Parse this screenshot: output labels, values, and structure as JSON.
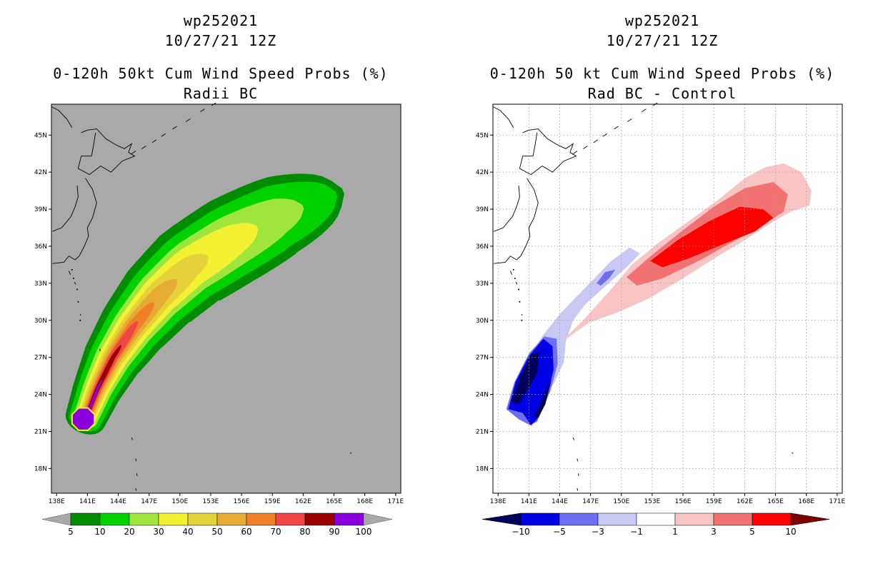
{
  "chart_data": [
    {
      "type": "heatmap",
      "storm_id": "wp252021",
      "date": "10/27/21 12Z",
      "title": "0-120h 50kt Cum Wind Speed Probs (%)",
      "subtitle": "Radii BC",
      "x_ticks": [
        "138E",
        "141E",
        "144E",
        "147E",
        "150E",
        "153E",
        "156E",
        "159E",
        "162E",
        "165E",
        "168E",
        "171E"
      ],
      "y_ticks": [
        "45N",
        "42N",
        "39N",
        "36N",
        "33N",
        "30N",
        "27N",
        "24N",
        "21N",
        "18N"
      ],
      "xlim": [
        137.5,
        171.5
      ],
      "ylim": [
        16.0,
        47.5
      ],
      "background_color": "#a9a9a9",
      "contour_levels": [
        5,
        10,
        20,
        30,
        40,
        50,
        60,
        70,
        80,
        90,
        100
      ],
      "colorbar_labels": [
        "5",
        "10",
        "20",
        "30",
        "40",
        "50",
        "60",
        "70",
        "80",
        "90",
        "100"
      ],
      "colors": [
        "#008c00",
        "#00d200",
        "#9ee53e",
        "#f2f233",
        "#e6d13a",
        "#e6ab33",
        "#f08028",
        "#f04646",
        "#9b0000",
        "#8a00dc"
      ],
      "track": {
        "path": [
          [
            140.8,
            22.0
          ],
          [
            142.0,
            24.5
          ],
          [
            143.5,
            27.0
          ],
          [
            145.5,
            29.5
          ],
          [
            148.0,
            32.0
          ],
          [
            151.0,
            34.3
          ],
          [
            155.0,
            36.4
          ],
          [
            159.5,
            38.4
          ],
          [
            164.5,
            40.0
          ]
        ],
        "widths_deg": [
          2.0,
          2.4,
          2.9,
          3.4,
          3.9,
          4.3,
          4.6,
          4.7,
          4.6
        ],
        "tip_extension": 1.5,
        "level_ends": [
          1.0,
          0.98,
          0.88,
          0.74,
          0.58,
          0.47,
          0.38,
          0.31,
          0.23,
          0.12
        ],
        "level_width_fractions": [
          1.0,
          0.8,
          0.6,
          0.48,
          0.37,
          0.28,
          0.2,
          0.15,
          0.09,
          0.05
        ]
      },
      "max_core": {
        "lon": 140.6,
        "lat": 22.0,
        "value_min": 100
      }
    },
    {
      "type": "heatmap",
      "storm_id": "wp252021",
      "date": "10/27/21 12Z",
      "title": "0-120h 50 kt Cum Wind Speed Probs (%)",
      "subtitle": "Rad BC - Control",
      "x_ticks": [
        "138E",
        "141E",
        "144E",
        "147E",
        "150E",
        "153E",
        "156E",
        "159E",
        "162E",
        "165E",
        "168E",
        "171E"
      ],
      "y_ticks": [
        "45N",
        "42N",
        "39N",
        "36N",
        "33N",
        "30N",
        "27N",
        "24N",
        "21N",
        "18N"
      ],
      "xlim": [
        137.5,
        171.5
      ],
      "ylim": [
        16.0,
        47.5
      ],
      "background_color": "#ffffff",
      "contour_levels": [
        -10,
        -5,
        -3,
        -1,
        1,
        3,
        5,
        10
      ],
      "colorbar_labels": [
        "-10",
        "-5",
        "-3",
        "-1",
        "1",
        "3",
        "5",
        "10"
      ],
      "colors": [
        "#00005a",
        "#0000e6",
        "#6e6ef0",
        "#c8c8f5",
        "#ffffff",
        "#f8c4c4",
        "#f27272",
        "#ff0000",
        "#7a0000"
      ],
      "negative_regions": [
        {
          "level": "-1 to -3",
          "polygon": [
            [
              138.8,
              22.8
            ],
            [
              139.5,
              24.5
            ],
            [
              141.0,
              27.0
            ],
            [
              142.3,
              28.7
            ],
            [
              144.0,
              30.5
            ],
            [
              145.5,
              31.8
            ],
            [
              147.5,
              33.5
            ],
            [
              149.0,
              34.8
            ],
            [
              150.8,
              35.9
            ],
            [
              151.8,
              35.4
            ],
            [
              150.5,
              34.3
            ],
            [
              148.5,
              32.8
            ],
            [
              146.5,
              31.3
            ],
            [
              145.3,
              30.0
            ],
            [
              144.6,
              28.3
            ],
            [
              144.4,
              26.6
            ],
            [
              143.5,
              25.0
            ],
            [
              142.3,
              23.5
            ],
            [
              141.3,
              21.4
            ],
            [
              140.3,
              22.0
            ]
          ]
        },
        {
          "level": "-3 to -5",
          "polygon": [
            [
              147.6,
              33.0
            ],
            [
              148.4,
              33.9
            ],
            [
              149.4,
              34.1
            ],
            [
              148.8,
              33.4
            ],
            [
              148.0,
              32.8
            ]
          ]
        },
        {
          "level": "-3 to -5",
          "polygon": [
            [
              138.8,
              22.8
            ],
            [
              139.6,
              25.0
            ],
            [
              141.0,
              27.3
            ],
            [
              142.5,
              28.7
            ],
            [
              143.7,
              28.5
            ],
            [
              143.8,
              26.5
            ],
            [
              143.1,
              24.3
            ],
            [
              141.8,
              21.8
            ],
            [
              141.1,
              21.5
            ],
            [
              140.0,
              22.0
            ]
          ]
        },
        {
          "level": "-5 to -10",
          "polygon": [
            [
              139.0,
              22.8
            ],
            [
              139.7,
              25.0
            ],
            [
              141.0,
              27.1
            ],
            [
              142.4,
              28.5
            ],
            [
              143.3,
              27.9
            ],
            [
              143.4,
              26.0
            ],
            [
              142.8,
              24.0
            ],
            [
              141.8,
              22.0
            ],
            [
              141.2,
              21.5
            ],
            [
              140.4,
              22.5
            ]
          ]
        },
        {
          "level": "< -10",
          "polygon": [
            [
              139.3,
              23.4
            ],
            [
              140.2,
              25.5
            ],
            [
              141.3,
              27.3
            ],
            [
              142.0,
              27.4
            ],
            [
              141.8,
              25.7
            ],
            [
              140.9,
              24.4
            ],
            [
              140.0,
              23.2
            ]
          ]
        },
        {
          "level": "< -10",
          "polygon": [
            [
              141.5,
              22.2
            ],
            [
              142.7,
              24.4
            ],
            [
              143.2,
              25.2
            ],
            [
              142.6,
              23.2
            ],
            [
              141.9,
              22.1
            ]
          ]
        }
      ],
      "positive_regions": [
        {
          "level": "1 to 3",
          "polygon": [
            [
              144.2,
              28.3
            ],
            [
              146.5,
              30.2
            ],
            [
              149.0,
              32.5
            ],
            [
              151.0,
              34.5
            ],
            [
              153.5,
              36.2
            ],
            [
              156.5,
              38.0
            ],
            [
              159.5,
              39.8
            ],
            [
              162.0,
              41.5
            ],
            [
              164.0,
              42.4
            ],
            [
              165.8,
              42.7
            ],
            [
              167.5,
              42.0
            ],
            [
              168.5,
              40.5
            ],
            [
              168.3,
              39.3
            ],
            [
              166.5,
              38.8
            ],
            [
              164.8,
              38.0
            ],
            [
              162.0,
              36.5
            ],
            [
              159.0,
              35.0
            ],
            [
              156.0,
              33.4
            ],
            [
              152.5,
              31.7
            ],
            [
              149.5,
              30.6
            ],
            [
              146.8,
              29.8
            ],
            [
              144.8,
              28.6
            ]
          ]
        },
        {
          "level": "3 to 5",
          "polygon": [
            [
              150.5,
              33.5
            ],
            [
              153.0,
              35.3
            ],
            [
              156.0,
              37.3
            ],
            [
              159.0,
              39.2
            ],
            [
              162.0,
              40.7
            ],
            [
              164.8,
              41.2
            ],
            [
              166.2,
              40.2
            ],
            [
              165.8,
              38.8
            ],
            [
              163.5,
              37.6
            ],
            [
              160.5,
              36.2
            ],
            [
              157.5,
              34.8
            ],
            [
              154.0,
              33.4
            ],
            [
              151.5,
              32.8
            ]
          ]
        },
        {
          "level": "5 to 10",
          "polygon": [
            [
              152.8,
              34.8
            ],
            [
              155.5,
              36.5
            ],
            [
              158.5,
              38.0
            ],
            [
              161.5,
              39.2
            ],
            [
              163.8,
              39.0
            ],
            [
              164.8,
              38.3
            ],
            [
              163.0,
              37.2
            ],
            [
              160.0,
              36.2
            ],
            [
              156.5,
              35.0
            ],
            [
              154.0,
              34.3
            ]
          ]
        }
      ]
    }
  ]
}
